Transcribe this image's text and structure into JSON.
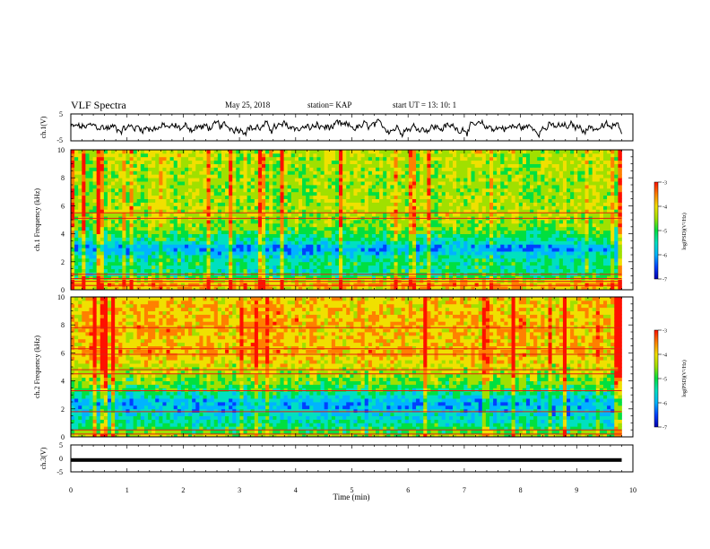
{
  "header": {
    "title": "VLF Spectra",
    "date": "May 25, 2018",
    "station": "station= KAP",
    "start_ut": "start  UT  =   13: 10: 1"
  },
  "colors": {
    "colormap": [
      "#0000b0",
      "#0040ff",
      "#00b4ff",
      "#00e0c0",
      "#00e040",
      "#a0e000",
      "#f0e000",
      "#ff8000",
      "#ff1000"
    ],
    "line": "#000000"
  },
  "chart_data": [
    {
      "type": "line",
      "name": "ch1-waveform",
      "ylabel": "ch.1(V)",
      "ylim": [
        -5,
        5
      ],
      "y_ticks": [
        "5",
        "-5"
      ],
      "xlim": [
        0,
        10
      ],
      "description_of_values": "noisy waveform oscillating roughly between -2 and 2 V"
    },
    {
      "type": "heatmap",
      "name": "ch1-spectrogram",
      "ylabel": "ch.1  Frequency  (kHz)",
      "ylim": [
        0,
        10
      ],
      "y_ticks": [
        "0",
        "2",
        "4",
        "6",
        "8",
        "10"
      ],
      "xlim": [
        0,
        10
      ],
      "data_extent_min": 9.8,
      "colorbar": {
        "label": "log(PSD)(V²/Hz)",
        "range": [
          -7,
          -3
        ],
        "ticks": [
          "-3",
          "-4",
          "-5",
          "-6",
          "-7"
        ]
      },
      "frequency_profile": [
        {
          "f": 0.0,
          "v": -4.0
        },
        {
          "f": 0.5,
          "v": -3.6
        },
        {
          "f": 1.0,
          "v": -5.2
        },
        {
          "f": 1.5,
          "v": -5.3
        },
        {
          "f": 2.0,
          "v": -5.2
        },
        {
          "f": 2.5,
          "v": -5.6
        },
        {
          "f": 3.0,
          "v": -6.2
        },
        {
          "f": 3.5,
          "v": -5.3
        },
        {
          "f": 4.0,
          "v": -5.0
        },
        {
          "f": 4.5,
          "v": -4.6
        },
        {
          "f": 5.0,
          "v": -4.5
        },
        {
          "f": 5.5,
          "v": -4.3
        },
        {
          "f": 6.0,
          "v": -4.4
        },
        {
          "f": 7.0,
          "v": -4.5
        },
        {
          "f": 8.0,
          "v": -4.5
        },
        {
          "f": 9.0,
          "v": -4.4
        },
        {
          "f": 10.0,
          "v": -4.3
        }
      ],
      "horizontal_lines_khz": [
        0.3,
        0.6,
        0.8,
        1.1,
        5.1,
        5.5
      ]
    },
    {
      "type": "heatmap",
      "name": "ch2-spectrogram",
      "ylabel": "ch.2  Frequency  (kHz)",
      "ylim": [
        0,
        10
      ],
      "y_ticks": [
        "0",
        "2",
        "4",
        "6",
        "8",
        "10"
      ],
      "xlim": [
        0,
        10
      ],
      "data_extent_min": 9.8,
      "colorbar": {
        "label": "log(PSD)(V²/Hz)",
        "range": [
          -7,
          -3
        ],
        "ticks": [
          "-3",
          "-4",
          "-5",
          "-6",
          "-7"
        ]
      },
      "frequency_profile": [
        {
          "f": 0.0,
          "v": -4.2
        },
        {
          "f": 0.5,
          "v": -5.0
        },
        {
          "f": 1.0,
          "v": -5.4
        },
        {
          "f": 1.5,
          "v": -5.6
        },
        {
          "f": 2.0,
          "v": -5.9
        },
        {
          "f": 2.5,
          "v": -6.0
        },
        {
          "f": 3.0,
          "v": -5.4
        },
        {
          "f": 3.5,
          "v": -5.0
        },
        {
          "f": 4.0,
          "v": -4.7
        },
        {
          "f": 5.0,
          "v": -4.2
        },
        {
          "f": 6.0,
          "v": -3.8
        },
        {
          "f": 7.0,
          "v": -3.9
        },
        {
          "f": 8.0,
          "v": -3.8
        },
        {
          "f": 9.0,
          "v": -3.9
        },
        {
          "f": 10.0,
          "v": -4.0
        }
      ],
      "horizontal_lines_khz": [
        0.2,
        0.5,
        1.8,
        3.3,
        4.5,
        4.8,
        5.9,
        6.3,
        7.8
      ]
    },
    {
      "type": "line",
      "name": "ch3-waveform",
      "ylabel": "ch.3(V)",
      "ylim": [
        -5,
        5
      ],
      "y_ticks": [
        "5",
        "0",
        "-5"
      ],
      "xlim": [
        0,
        10
      ],
      "constant_value": -0.6,
      "xlabel": "Time  (min)",
      "x_ticks": [
        "0",
        "1",
        "2",
        "3",
        "4",
        "5",
        "6",
        "7",
        "8",
        "9",
        "10"
      ]
    }
  ]
}
